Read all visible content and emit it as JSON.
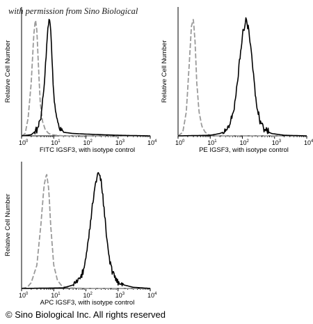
{
  "watermark": "with permission from Sino Biological",
  "copyright": "© Sino Biological Inc. All rights reserved",
  "colors": {
    "isotype": "#9a9a9a",
    "sample": "#000000"
  },
  "chart_data": [
    {
      "type": "line",
      "xscale": "log",
      "xlim": [
        1,
        10000
      ],
      "xticks": [
        1,
        10,
        100,
        1000,
        10000
      ],
      "ylabel": "Relative Cell Number",
      "xlabel": "FITC  IGSF3,  with isotype control",
      "series": [
        {
          "style": "dashed-gray",
          "x": [
            1,
            1.3,
            1.6,
            2.0,
            2.4,
            2.7,
            3.0,
            3.4,
            3.8,
            4.5,
            5.5,
            7,
            9,
            12,
            20,
            50,
            200,
            10000
          ],
          "y": [
            0,
            0.02,
            0.15,
            0.45,
            0.85,
            0.98,
            0.88,
            0.55,
            0.28,
            0.12,
            0.05,
            0.02,
            0.01,
            0.005,
            0,
            0,
            0,
            0
          ]
        },
        {
          "style": "solid-black",
          "x": [
            1,
            2,
            3,
            4,
            5,
            6,
            7,
            8,
            9,
            10,
            12,
            15,
            20,
            40,
            100,
            300,
            1000,
            10000
          ],
          "y": [
            0,
            0.01,
            0.05,
            0.15,
            0.4,
            0.75,
            0.97,
            0.92,
            0.62,
            0.35,
            0.15,
            0.06,
            0.03,
            0.02,
            0.015,
            0.01,
            0.005,
            0
          ]
        }
      ]
    },
    {
      "type": "line",
      "xscale": "log",
      "xlim": [
        1,
        10000
      ],
      "xticks": [
        1,
        10,
        100,
        1000,
        10000
      ],
      "ylabel": "Relative Cell Number",
      "xlabel": "PE  IGSF3,  with isotype control",
      "series": [
        {
          "style": "dashed-gray",
          "x": [
            1,
            1.4,
            1.8,
            2.2,
            2.6,
            3.0,
            3.4,
            3.8,
            4.5,
            5.5,
            7,
            9,
            12,
            20,
            100,
            10000
          ],
          "y": [
            0,
            0.03,
            0.2,
            0.58,
            0.92,
            0.98,
            0.78,
            0.45,
            0.2,
            0.08,
            0.03,
            0.01,
            0,
            0,
            0,
            0
          ]
        },
        {
          "style": "solid-black",
          "x": [
            1,
            10,
            20,
            30,
            40,
            60,
            80,
            100,
            130,
            160,
            200,
            260,
            350,
            500,
            800,
            2000,
            10000
          ],
          "y": [
            0,
            0.005,
            0.02,
            0.04,
            0.08,
            0.28,
            0.6,
            0.85,
            0.98,
            0.88,
            0.62,
            0.32,
            0.12,
            0.05,
            0.02,
            0.005,
            0
          ]
        }
      ]
    },
    {
      "type": "line",
      "xscale": "log",
      "xlim": [
        1,
        10000
      ],
      "xticks": [
        1,
        10,
        100,
        1000,
        10000
      ],
      "ylabel": "Relative Cell Number",
      "xlabel": "APC IGSF3, with isotype control",
      "series": [
        {
          "style": "dashed-gray",
          "x": [
            1,
            1.5,
            2,
            3,
            4,
            5,
            6,
            7,
            8,
            10,
            13,
            18,
            30,
            100,
            10000
          ],
          "y": [
            0,
            0.01,
            0.05,
            0.2,
            0.55,
            0.88,
            0.98,
            0.85,
            0.55,
            0.2,
            0.07,
            0.02,
            0.005,
            0,
            0
          ]
        },
        {
          "style": "solid-black",
          "x": [
            1,
            20,
            40,
            60,
            80,
            100,
            130,
            160,
            200,
            250,
            300,
            350,
            420,
            500,
            650,
            900,
            1500,
            3000,
            10000
          ],
          "y": [
            0,
            0.005,
            0.03,
            0.07,
            0.14,
            0.28,
            0.5,
            0.72,
            0.9,
            0.98,
            0.92,
            0.74,
            0.5,
            0.3,
            0.14,
            0.06,
            0.03,
            0.01,
            0
          ]
        }
      ]
    }
  ]
}
